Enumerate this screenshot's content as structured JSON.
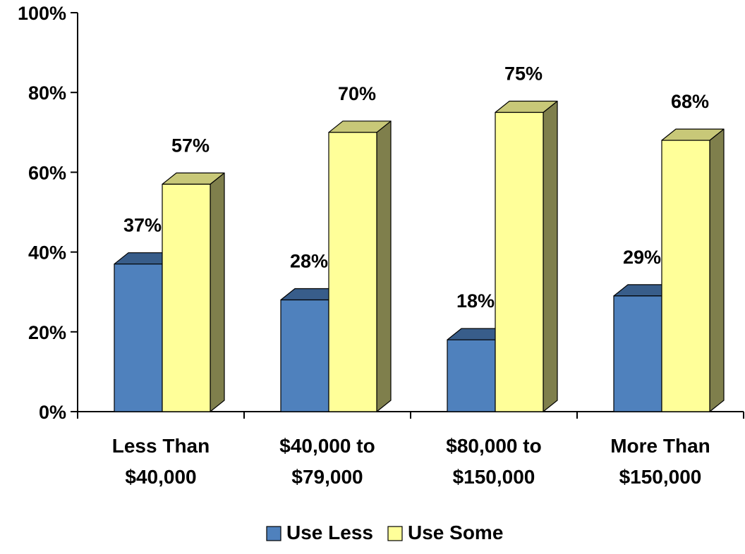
{
  "chart_data": {
    "type": "bar",
    "title": "",
    "xlabel": "",
    "ylabel": "",
    "categories": [
      [
        "Less Than",
        "$40,000"
      ],
      [
        "$40,000 to",
        "$79,000"
      ],
      [
        "$80,000 to",
        "$150,000"
      ],
      [
        "More Than",
        "$150,000"
      ]
    ],
    "series": [
      {
        "name": "Use Less",
        "values": [
          37,
          28,
          18,
          29
        ],
        "labels": [
          "37%",
          "28%",
          "18%",
          "29%"
        ]
      },
      {
        "name": "Use Some",
        "values": [
          57,
          70,
          75,
          68
        ],
        "labels": [
          "57%",
          "70%",
          "75%",
          "68%"
        ]
      }
    ],
    "ylim": [
      0,
      100
    ],
    "yticks": [
      0,
      20,
      40,
      60,
      80,
      100
    ],
    "ytick_labels": [
      "0%",
      "20%",
      "40%",
      "60%",
      "80%",
      "100%"
    ],
    "grid": false,
    "three_d": true,
    "legend_position": "bottom",
    "colors": {
      "Use Less": {
        "front": "#4F81BD",
        "top": "#385D8A",
        "side": "#2C4A70"
      },
      "Use Some": {
        "front": "#FFFF99",
        "top": "#C8C878",
        "side": "#7F7F4C"
      }
    }
  }
}
